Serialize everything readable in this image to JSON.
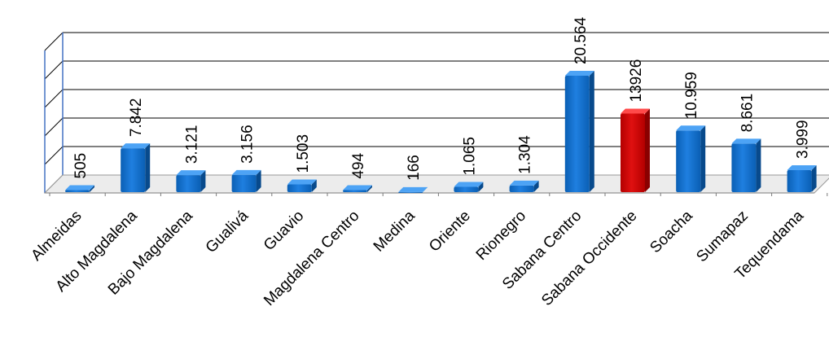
{
  "chart_data": {
    "type": "bar",
    "categories": [
      "Almeidas",
      "Alto Magdalena",
      "Bajo Magdalena",
      "Gualivá",
      "Guavio",
      "Magdalena Centro",
      "Medina",
      "Oriente",
      "Rionegro",
      "Sabana Centro",
      "Sabana Occidente",
      "Soacha",
      "Sumapaz",
      "Tequendama"
    ],
    "values": [
      505,
      7842,
      3121,
      3156,
      1503,
      494,
      166,
      1065,
      1304,
      20564,
      13926,
      10959,
      8661,
      3999
    ],
    "data_labels": [
      "505",
      "7.842",
      "3.121",
      "3.156",
      "1.503",
      "494",
      "166",
      "1.065",
      "1.304",
      "20.564",
      "13926",
      "10.959",
      "8.661",
      "3.999"
    ],
    "highlight_index": 10,
    "colors": {
      "bar": "#0066cc",
      "highlight": "#cc0000",
      "grid": "#000000",
      "wall_edge": "#4472c4"
    },
    "ylim": [
      0,
      25000
    ],
    "grid": true,
    "legend": "none"
  }
}
